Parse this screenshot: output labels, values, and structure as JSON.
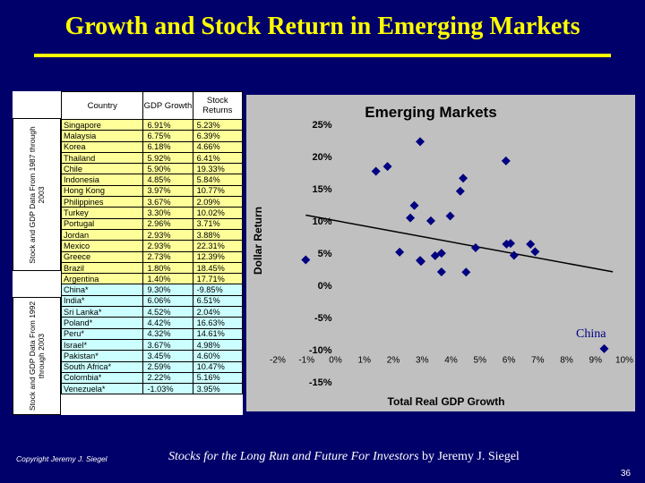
{
  "slide": {
    "title": "Growth and Stock Return in Emerging Markets",
    "copyright": "Copyright Jeremy J. Siegel",
    "credit_book": "Stocks for the Long Run and Future For Investors",
    "credit_author": " by Jeremy J. Siegel",
    "page_number": "36"
  },
  "table": {
    "headers": [
      "Country",
      "GDP Growth",
      "Stock Returns"
    ],
    "group1_label": "Stock and GDP Data From 1987 through 2003",
    "group2_label": "Stock and GDP Data From 1992 through 2003",
    "group1": [
      {
        "country": "Singapore",
        "gdp": "6.91%",
        "ret": "5.23%"
      },
      {
        "country": "Malaysia",
        "gdp": "6.75%",
        "ret": "6.39%"
      },
      {
        "country": "Korea",
        "gdp": "6.18%",
        "ret": "4.66%"
      },
      {
        "country": "Thailand",
        "gdp": "5.92%",
        "ret": "6.41%"
      },
      {
        "country": "Chile",
        "gdp": "5.90%",
        "ret": "19.33%"
      },
      {
        "country": "Indonesia",
        "gdp": "4.85%",
        "ret": "5.84%"
      },
      {
        "country": "Hong Kong",
        "gdp": "3.97%",
        "ret": "10.77%"
      },
      {
        "country": "Philippines",
        "gdp": "3.67%",
        "ret": "2.09%"
      },
      {
        "country": "Turkey",
        "gdp": "3.30%",
        "ret": "10.02%"
      },
      {
        "country": "Portugal",
        "gdp": "2.96%",
        "ret": "3.71%"
      },
      {
        "country": "Jordan",
        "gdp": "2.93%",
        "ret": "3.88%"
      },
      {
        "country": "Mexico",
        "gdp": "2.93%",
        "ret": "22.31%"
      },
      {
        "country": "Greece",
        "gdp": "2.73%",
        "ret": "12.39%"
      },
      {
        "country": "Brazil",
        "gdp": "1.80%",
        "ret": "18.45%"
      },
      {
        "country": "Argentina",
        "gdp": "1.40%",
        "ret": "17.71%"
      }
    ],
    "group2": [
      {
        "country": "China*",
        "gdp": "9.30%",
        "ret": "-9.85%"
      },
      {
        "country": "India*",
        "gdp": "6.06%",
        "ret": "6.51%"
      },
      {
        "country": "Sri Lanka*",
        "gdp": "4.52%",
        "ret": "2.04%"
      },
      {
        "country": "Poland*",
        "gdp": "4.42%",
        "ret": "16.63%"
      },
      {
        "country": "Peru*",
        "gdp": "4.32%",
        "ret": "14.61%"
      },
      {
        "country": "Israel*",
        "gdp": "3.67%",
        "ret": "4.98%"
      },
      {
        "country": "Pakistan*",
        "gdp": "3.45%",
        "ret": "4.60%"
      },
      {
        "country": "South Africa*",
        "gdp": "2.59%",
        "ret": "10.47%"
      },
      {
        "country": "Colombia*",
        "gdp": "2.22%",
        "ret": "5.16%"
      },
      {
        "country": "Venezuela*",
        "gdp": "-1.03%",
        "ret": "3.95%"
      }
    ]
  },
  "chart_data": {
    "type": "scatter",
    "title": "Emerging Markets",
    "xlabel": "Total Real GDP Growth",
    "ylabel": "Dollar Return",
    "xlim": [
      -2,
      10
    ],
    "ylim": [
      -15,
      25
    ],
    "x_ticks": [
      -2,
      -1,
      0,
      1,
      2,
      3,
      4,
      5,
      6,
      7,
      8,
      9,
      10
    ],
    "x_tick_labels": [
      "-2%",
      "-1%",
      "0%",
      "1%",
      "2%",
      "3%",
      "4%",
      "5%",
      "6%",
      "7%",
      "8%",
      "9%",
      "10%"
    ],
    "y_ticks": [
      25,
      20,
      15,
      10,
      5,
      0,
      -5,
      -10,
      -15
    ],
    "y_tick_labels": [
      "25%",
      "20%",
      "15%",
      "10%",
      "5%",
      "0%",
      "-5%",
      "-10%",
      "-15%"
    ],
    "annotation": "China",
    "marker_color": "#000080",
    "points": [
      {
        "x": 6.91,
        "y": 5.23
      },
      {
        "x": 6.75,
        "y": 6.39
      },
      {
        "x": 6.18,
        "y": 4.66
      },
      {
        "x": 5.92,
        "y": 6.41
      },
      {
        "x": 5.9,
        "y": 19.33
      },
      {
        "x": 4.85,
        "y": 5.84
      },
      {
        "x": 3.97,
        "y": 10.77
      },
      {
        "x": 3.67,
        "y": 2.09
      },
      {
        "x": 3.3,
        "y": 10.02
      },
      {
        "x": 2.96,
        "y": 3.71
      },
      {
        "x": 2.93,
        "y": 3.88
      },
      {
        "x": 2.93,
        "y": 22.31
      },
      {
        "x": 2.73,
        "y": 12.39
      },
      {
        "x": 1.8,
        "y": 18.45
      },
      {
        "x": 1.4,
        "y": 17.71
      },
      {
        "x": 9.3,
        "y": -9.85
      },
      {
        "x": 6.06,
        "y": 6.51
      },
      {
        "x": 4.52,
        "y": 2.04
      },
      {
        "x": 4.42,
        "y": 16.63
      },
      {
        "x": 4.32,
        "y": 14.61
      },
      {
        "x": 3.67,
        "y": 4.98
      },
      {
        "x": 3.45,
        "y": 4.6
      },
      {
        "x": 2.59,
        "y": 10.47
      },
      {
        "x": 2.22,
        "y": 5.16
      },
      {
        "x": -1.03,
        "y": 3.95
      }
    ],
    "trendline": [
      {
        "x": -1.03,
        "y": 10.9
      },
      {
        "x": 9.6,
        "y": 2.1
      }
    ]
  }
}
